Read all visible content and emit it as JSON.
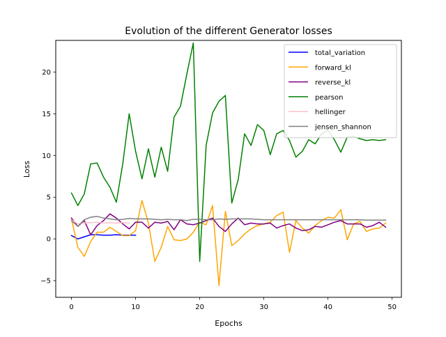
{
  "chart_data": {
    "type": "line",
    "title": "Evolution of the different Generator losses",
    "xlabel": "Epochs",
    "ylabel": "Loss",
    "xlim": [
      -2.45,
      51.45
    ],
    "ylim": [
      -7,
      23.8
    ],
    "xticks": [
      0,
      10,
      20,
      30,
      40,
      50
    ],
    "xtick_labels": [
      "0",
      "10",
      "20",
      "30",
      "40",
      "50"
    ],
    "yticks": [
      -5,
      0,
      5,
      10,
      15,
      20
    ],
    "ytick_labels": [
      "−5",
      "0",
      "5",
      "10",
      "15",
      "20"
    ],
    "grid": false,
    "legend_position": "top-right",
    "series": [
      {
        "name": "total_variation",
        "color": "#0000ff",
        "x": [
          0,
          1,
          2,
          3,
          4,
          5,
          6,
          7,
          8,
          9,
          10
        ],
        "y": [
          0.4,
          0.0,
          0.25,
          0.5,
          0.5,
          0.45,
          0.45,
          0.5,
          0.45,
          0.45,
          0.45
        ]
      },
      {
        "name": "forward_kl",
        "color": "#ffa500",
        "x": [
          0,
          1,
          2,
          3,
          4,
          5,
          6,
          7,
          8,
          9,
          10,
          11,
          12,
          13,
          14,
          15,
          16,
          17,
          18,
          19,
          20,
          21,
          22,
          23,
          24,
          25,
          26,
          27,
          28,
          29,
          30,
          31,
          32,
          33,
          34,
          35,
          36,
          37,
          38,
          39,
          40,
          41,
          42,
          43,
          44,
          45,
          46,
          47,
          48,
          49
        ],
        "y": [
          2.4,
          -1.0,
          -2.1,
          -0.3,
          0.8,
          0.8,
          1.4,
          0.9,
          0.4,
          0.4,
          1.0,
          4.6,
          1.9,
          -2.7,
          -1.0,
          1.5,
          -0.1,
          -0.2,
          0.0,
          0.8,
          2.0,
          1.7,
          4.0,
          -5.6,
          3.3,
          -0.8,
          -0.2,
          0.6,
          1.2,
          1.6,
          1.8,
          2.0,
          2.8,
          3.2,
          -1.6,
          2.2,
          1.3,
          0.7,
          1.6,
          2.2,
          2.6,
          2.5,
          3.5,
          -0.1,
          1.8,
          2.1,
          0.9,
          1.2,
          1.3,
          1.9
        ]
      },
      {
        "name": "reverse_kl",
        "color": "#800080",
        "x": [
          0,
          1,
          2,
          3,
          4,
          5,
          6,
          7,
          8,
          9,
          10,
          11,
          12,
          13,
          14,
          15,
          16,
          17,
          18,
          19,
          20,
          21,
          22,
          23,
          24,
          25,
          26,
          27,
          28,
          29,
          30,
          31,
          32,
          33,
          34,
          35,
          36,
          37,
          38,
          39,
          40,
          41,
          42,
          43,
          44,
          45,
          46,
          47,
          48,
          49
        ],
        "y": [
          2.5,
          1.5,
          2.2,
          0.5,
          1.6,
          2.2,
          3.0,
          2.5,
          1.8,
          1.2,
          2.0,
          2.0,
          1.3,
          2.0,
          1.9,
          2.1,
          1.1,
          2.3,
          1.8,
          1.7,
          1.9,
          2.2,
          2.5,
          1.5,
          0.9,
          1.8,
          2.5,
          1.7,
          1.9,
          1.8,
          1.8,
          1.9,
          1.3,
          1.6,
          1.8,
          1.3,
          1.0,
          1.1,
          1.5,
          1.4,
          1.7,
          2.0,
          2.2,
          1.8,
          1.8,
          1.8,
          1.4,
          1.6,
          2.0,
          1.4
        ]
      },
      {
        "name": "pearson",
        "color": "#008000",
        "x": [
          0,
          1,
          2,
          3,
          4,
          5,
          6,
          7,
          8,
          9,
          10,
          11,
          12,
          13,
          14,
          15,
          16,
          17,
          18,
          19,
          20,
          21,
          22,
          23,
          24,
          25,
          26,
          27,
          28,
          29,
          30,
          31,
          32,
          33,
          34,
          35,
          36,
          37,
          38,
          39,
          40,
          41,
          42,
          43,
          44,
          45,
          46,
          47,
          48,
          49
        ],
        "y": [
          5.5,
          4.0,
          5.4,
          9.0,
          9.1,
          7.4,
          6.2,
          4.4,
          9.0,
          15.0,
          10.5,
          7.2,
          10.8,
          7.4,
          11.0,
          8.1,
          14.6,
          15.9,
          19.8,
          23.5,
          -2.7,
          11.2,
          15.1,
          16.5,
          17.2,
          4.3,
          7.1,
          12.6,
          11.2,
          13.7,
          13.0,
          10.1,
          12.6,
          13.0,
          11.8,
          9.8,
          10.5,
          11.9,
          11.4,
          12.6,
          13.0,
          11.9,
          10.4,
          12.2,
          12.3,
          12.0,
          11.8,
          11.9,
          11.8,
          11.9
        ]
      },
      {
        "name": "hellinger",
        "color": "#ffc0cb",
        "x": [
          0,
          1,
          2,
          3,
          4,
          5,
          6,
          7,
          8,
          9
        ],
        "y": [
          2.3,
          1.8,
          1.9,
          1.95,
          2.0,
          1.9,
          1.95,
          1.9,
          1.95,
          1.9
        ]
      },
      {
        "name": "jensen_shannon",
        "color": "#808080",
        "x": [
          0,
          1,
          2,
          3,
          4,
          5,
          6,
          7,
          8,
          9,
          10,
          11,
          12,
          13,
          14,
          15,
          16,
          17,
          18,
          19,
          20,
          21,
          22,
          23,
          24,
          25,
          26,
          27,
          28,
          29,
          30,
          31,
          32,
          33,
          34,
          35,
          36,
          37,
          38,
          39,
          40,
          41,
          42,
          43,
          44,
          45,
          46,
          47,
          48,
          49
        ],
        "y": [
          2.2,
          1.5,
          2.3,
          2.6,
          2.7,
          2.5,
          2.4,
          2.3,
          2.35,
          2.45,
          2.4,
          2.4,
          2.4,
          2.35,
          2.3,
          2.35,
          2.3,
          2.3,
          2.2,
          2.35,
          2.35,
          2.3,
          2.3,
          2.4,
          2.35,
          2.4,
          2.4,
          2.4,
          2.4,
          2.35,
          2.3,
          2.3,
          2.3,
          2.3,
          2.3,
          2.3,
          2.3,
          2.3,
          2.3,
          2.3,
          2.3,
          2.3,
          2.3,
          2.3,
          2.3,
          2.3,
          2.25,
          2.25,
          2.25,
          2.25
        ]
      }
    ]
  }
}
